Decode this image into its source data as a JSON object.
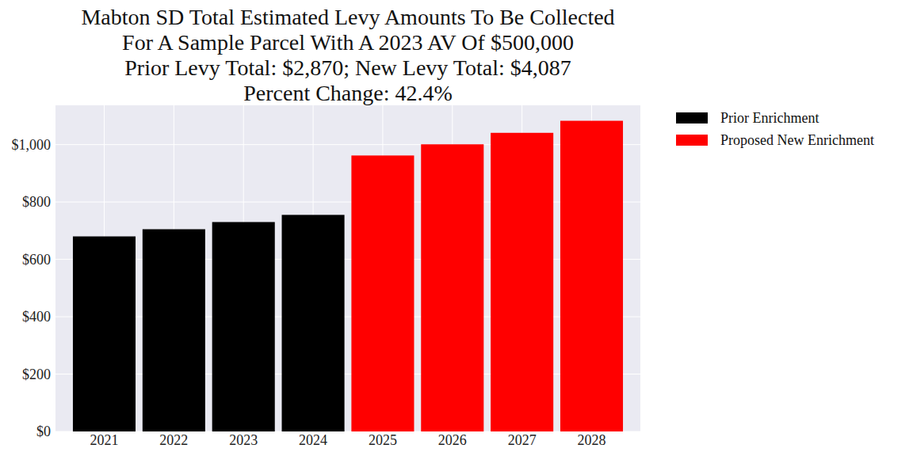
{
  "chart_data": {
    "type": "bar",
    "title": "Mabton SD Total Estimated Levy Amounts To Be Collected\nFor A Sample Parcel With A 2023 AV Of $500,000\nPrior Levy Total:  $2,870; New Levy Total: $4,087\nPercent Change: 42.4%",
    "categories": [
      "2021",
      "2022",
      "2023",
      "2024",
      "2025",
      "2026",
      "2027",
      "2028"
    ],
    "series": [
      {
        "name": "Prior Enrichment",
        "color": "#000000",
        "values": [
          680,
          705,
          730,
          755,
          null,
          null,
          null,
          null
        ]
      },
      {
        "name": "Proposed New Enrichment",
        "color": "#ff0000",
        "values": [
          null,
          null,
          null,
          null,
          962,
          1001,
          1041,
          1083
        ]
      }
    ],
    "ylim": [
      0,
      1137
    ],
    "yticks": [
      {
        "value": 0,
        "label": "$0"
      },
      {
        "value": 200,
        "label": "$200"
      },
      {
        "value": 400,
        "label": "$400"
      },
      {
        "value": 600,
        "label": "$600"
      },
      {
        "value": 800,
        "label": "$800"
      },
      {
        "value": 1000,
        "label": "$1,000"
      }
    ],
    "grid": true,
    "legend": "right"
  }
}
